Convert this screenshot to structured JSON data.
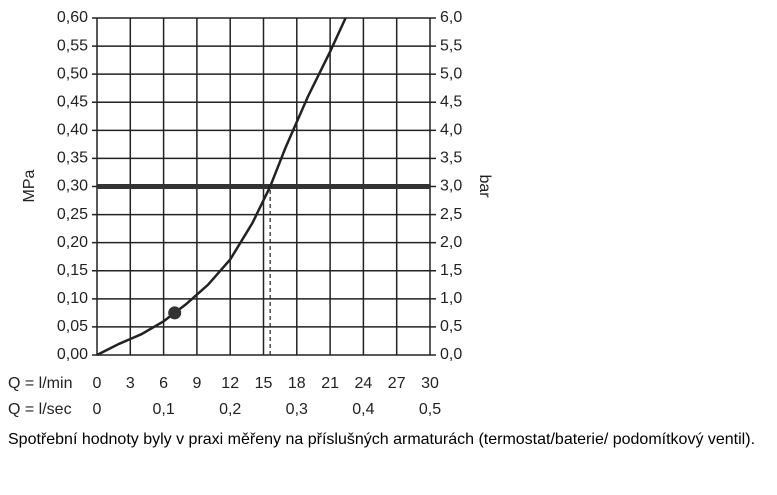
{
  "chart_data": {
    "type": "line",
    "ylabel": "MPa",
    "y2label": "bar",
    "xlabel": "Q = l/min",
    "x2label": "Q = l/sec",
    "note": "Spotřební hodnoty byly v praxi měřeny na příslušných armaturách (termostat/baterie/ podomítkový ventil).",
    "xlim": [
      0,
      30
    ],
    "xticks": [
      0,
      3,
      6,
      9,
      12,
      15,
      18,
      21,
      24,
      27,
      30
    ],
    "x2lim": [
      0,
      0.5
    ],
    "x2ticks": [
      0,
      {
        "value": 0.1,
        "label": "0,1"
      },
      {
        "value": 0.2,
        "label": "0,2"
      },
      {
        "value": 0.3,
        "label": "0,3"
      },
      {
        "value": 0.4,
        "label": "0,4"
      },
      {
        "value": 0.5,
        "label": "0,5"
      }
    ],
    "ylim": [
      0,
      0.6
    ],
    "yticks": [
      {
        "value": 0,
        "label": "0,00"
      },
      {
        "value": 0.05,
        "label": "0,05"
      },
      {
        "value": 0.1,
        "label": "0,10"
      },
      {
        "value": 0.15,
        "label": "0,15"
      },
      {
        "value": 0.2,
        "label": "0,20"
      },
      {
        "value": 0.25,
        "label": "0,25"
      },
      {
        "value": 0.3,
        "label": "0,30"
      },
      {
        "value": 0.35,
        "label": "0,35"
      },
      {
        "value": 0.4,
        "label": "0,40"
      },
      {
        "value": 0.45,
        "label": "0,45"
      },
      {
        "value": 0.5,
        "label": "0,50"
      },
      {
        "value": 0.55,
        "label": "0,55"
      },
      {
        "value": 0.6,
        "label": "0,60"
      }
    ],
    "y2lim": [
      0,
      6
    ],
    "y2ticks": [
      {
        "value": 0,
        "label": "0,0"
      },
      {
        "value": 0.5,
        "label": "0,5"
      },
      {
        "value": 1,
        "label": "1,0"
      },
      {
        "value": 1.5,
        "label": "1,5"
      },
      {
        "value": 2,
        "label": "2,0"
      },
      {
        "value": 2.5,
        "label": "2,5"
      },
      {
        "value": 3,
        "label": "3,0"
      },
      {
        "value": 3.5,
        "label": "3,5"
      },
      {
        "value": 4,
        "label": "4,0"
      },
      {
        "value": 4.5,
        "label": "4,5"
      },
      {
        "value": 5,
        "label": "5,0"
      },
      {
        "value": 5.5,
        "label": "5,5"
      },
      {
        "value": 6,
        "label": "6,0"
      }
    ],
    "grid": true,
    "color": "#222222",
    "x": [
      0,
      2,
      4,
      6,
      7,
      8,
      10,
      12,
      14,
      15.6,
      17,
      19,
      21,
      22.4
    ],
    "values": [
      0,
      0.02,
      0.037,
      0.06,
      0.075,
      0.09,
      0.125,
      0.17,
      0.235,
      0.3,
      0.37,
      0.46,
      0.54,
      0.6
    ],
    "reference_y": 0.3,
    "operating_point": {
      "x": 15.6,
      "y": 0.3
    },
    "marker": {
      "x": 7,
      "y": 0.075
    }
  }
}
